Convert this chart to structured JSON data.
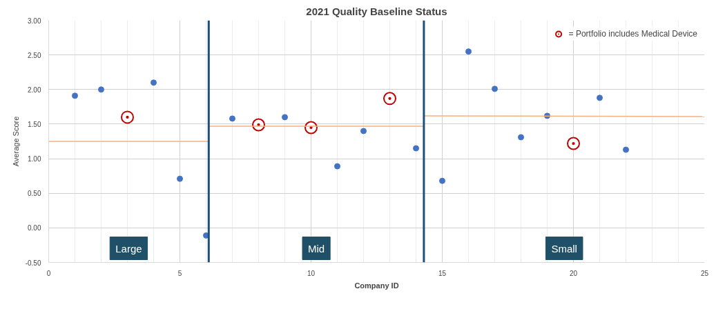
{
  "chart_data": {
    "type": "scatter",
    "title": "2021 Quality Baseline Status",
    "xlabel": "Company ID",
    "ylabel": "Average Score",
    "x": [
      1,
      2,
      3,
      4,
      5,
      6,
      7,
      8,
      9,
      10,
      11,
      12,
      13,
      14,
      15,
      16,
      17,
      18,
      19,
      20,
      21,
      22
    ],
    "series": [
      {
        "color": "#4472c4",
        "values": [
          1.91,
          2.0,
          null,
          2.1,
          0.71,
          -0.11,
          1.58,
          null,
          1.6,
          null,
          0.89,
          1.4,
          null,
          1.15,
          0.68,
          2.55,
          2.01,
          1.31,
          1.62,
          null,
          1.88,
          1.13
        ]
      },
      {
        "name": "= Portfolio includes Medical Device",
        "color": "#c00000",
        "marker": "circle_ring",
        "x": [
          3,
          8,
          10,
          13,
          20
        ],
        "values": [
          1.6,
          1.49,
          1.45,
          1.87,
          1.22
        ]
      },
      {
        "type": "line",
        "color": "#f4b183",
        "x": [
          0,
          6.1
        ],
        "values": [
          1.25,
          1.25
        ],
        "marker": "none"
      },
      {
        "type": "line",
        "color": "#f4b183",
        "x": [
          6.1,
          14.3
        ],
        "values": [
          1.47,
          1.47
        ],
        "marker": "none"
      },
      {
        "type": "line",
        "color": "#f4b183",
        "x": [
          14.3,
          25
        ],
        "values": [
          1.62,
          1.61
        ],
        "marker": "none"
      }
    ],
    "ref_lines": [
      {
        "axis": "x",
        "value": 6.1,
        "color": "#1f4e79"
      },
      {
        "axis": "x",
        "value": 14.3,
        "color": "#1f4e79"
      }
    ],
    "annotations": [
      "Large",
      "Mid",
      "Small"
    ],
    "xlim": [
      0,
      25
    ],
    "xticks": [
      0,
      5,
      10,
      15,
      20,
      25
    ],
    "ylim": [
      -0.5,
      3.0
    ],
    "yticks": [
      {
        "value": -0.5,
        "label": "-0.50"
      },
      {
        "value": 0,
        "label": "0.00"
      },
      {
        "value": 0.5,
        "label": "0.50"
      },
      {
        "value": 1,
        "label": "1.00"
      },
      {
        "value": 1.5,
        "label": "1.50"
      },
      {
        "value": 2,
        "label": "2.00"
      },
      {
        "value": 2.5,
        "label": "2.50"
      },
      {
        "value": 3,
        "label": "3.00"
      }
    ],
    "grid": true,
    "legend": "top right",
    "marker": "circle"
  }
}
